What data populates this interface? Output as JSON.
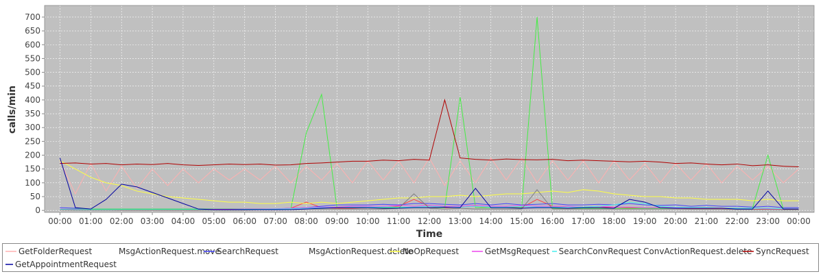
{
  "chart_data": {
    "type": "line",
    "xlabel": "Time",
    "ylabel": "calls/min",
    "grid": true,
    "legend": "bottom",
    "x": [
      0,
      0.5,
      1,
      1.5,
      2,
      2.5,
      3,
      3.5,
      4,
      4.5,
      5,
      5.5,
      6,
      6.5,
      7,
      7.5,
      8,
      8.5,
      9,
      9.5,
      10,
      10.5,
      11,
      11.5,
      12,
      12.5,
      13,
      13.5,
      14,
      14.5,
      15,
      15.5,
      16,
      16.5,
      17,
      17.5,
      18,
      18.5,
      19,
      19.5,
      20,
      20.5,
      21,
      21.5,
      22,
      22.5,
      23,
      23.5,
      24
    ],
    "xlim": [
      -0.5,
      24.5
    ],
    "xticks": [
      {
        "value": 0,
        "label": "00:00"
      },
      {
        "value": 1,
        "label": "01:00"
      },
      {
        "value": 2,
        "label": "02:00"
      },
      {
        "value": 3,
        "label": "03:00"
      },
      {
        "value": 4,
        "label": "04:00"
      },
      {
        "value": 5,
        "label": "05:00"
      },
      {
        "value": 6,
        "label": "06:00"
      },
      {
        "value": 7,
        "label": "07:00"
      },
      {
        "value": 8,
        "label": "08:00"
      },
      {
        "value": 9,
        "label": "09:00"
      },
      {
        "value": 10,
        "label": "10:00"
      },
      {
        "value": 11,
        "label": "11:00"
      },
      {
        "value": 12,
        "label": "12:00"
      },
      {
        "value": 13,
        "label": "13:00"
      },
      {
        "value": 14,
        "label": "14:00"
      },
      {
        "value": 15,
        "label": "15:00"
      },
      {
        "value": 16,
        "label": "16:00"
      },
      {
        "value": 17,
        "label": "17:00"
      },
      {
        "value": 18,
        "label": "18:00"
      },
      {
        "value": 19,
        "label": "19:00"
      },
      {
        "value": 20,
        "label": "20:00"
      },
      {
        "value": 21,
        "label": "21:00"
      },
      {
        "value": 22,
        "label": "22:00"
      },
      {
        "value": 23,
        "label": "23:00"
      },
      {
        "value": 24,
        "label": "00:00"
      }
    ],
    "ylim": [
      -7,
      742
    ],
    "yticks": [
      0,
      50,
      100,
      150,
      200,
      250,
      300,
      350,
      400,
      450,
      500,
      550,
      600,
      650,
      700
    ],
    "series": [
      {
        "name": "GetFolderRequest",
        "color": "#ffb0b0",
        "values": [
          180,
          60,
          170,
          70,
          160,
          80,
          150,
          90,
          150,
          100,
          150,
          110,
          150,
          110,
          160,
          100,
          160,
          110,
          170,
          100,
          180,
          110,
          180,
          100,
          190,
          90,
          180,
          100,
          190,
          110,
          190,
          100,
          180,
          110,
          180,
          100,
          180,
          110,
          170,
          100,
          170,
          110,
          170,
          100,
          160,
          110,
          160,
          100,
          150
        ]
      },
      {
        "name": "MsgActionRequest.move",
        "color": "#ff4444",
        "values": [
          3,
          2,
          2,
          2,
          1,
          1,
          1,
          1,
          1,
          1,
          2,
          2,
          3,
          3,
          5,
          8,
          30,
          10,
          8,
          8,
          10,
          10,
          15,
          40,
          15,
          10,
          12,
          15,
          10,
          12,
          10,
          40,
          15,
          12,
          10,
          10,
          12,
          10,
          8,
          8,
          8,
          6,
          6,
          5,
          5,
          4,
          4,
          3,
          3
        ]
      },
      {
        "name": "SearchRequest",
        "color": "#4444ff",
        "values": [
          10,
          8,
          5,
          5,
          5,
          5,
          5,
          5,
          5,
          5,
          5,
          5,
          5,
          5,
          5,
          8,
          10,
          15,
          20,
          20,
          20,
          22,
          20,
          25,
          25,
          22,
          20,
          25,
          20,
          25,
          20,
          22,
          25,
          20,
          20,
          22,
          20,
          25,
          20,
          18,
          20,
          15,
          18,
          15,
          15,
          12,
          15,
          10,
          10
        ]
      },
      {
        "name": "MsgActionRequest.delete",
        "color": "#44ee44",
        "values": [
          5,
          5,
          5,
          5,
          5,
          5,
          5,
          5,
          5,
          5,
          5,
          5,
          5,
          5,
          5,
          5,
          280,
          420,
          10,
          10,
          10,
          10,
          10,
          10,
          10,
          10,
          410,
          10,
          10,
          10,
          10,
          700,
          8,
          8,
          8,
          8,
          8,
          8,
          8,
          8,
          8,
          8,
          8,
          8,
          8,
          8,
          200,
          5,
          5
        ]
      },
      {
        "name": "NoOpRequest",
        "color": "#ffff44",
        "values": [
          180,
          150,
          120,
          100,
          90,
          70,
          60,
          50,
          45,
          40,
          35,
          30,
          30,
          25,
          25,
          30,
          25,
          30,
          25,
          30,
          35,
          40,
          45,
          45,
          50,
          50,
          55,
          50,
          55,
          60,
          60,
          65,
          70,
          65,
          75,
          70,
          60,
          55,
          50,
          50,
          45,
          45,
          40,
          40,
          40,
          35,
          40,
          35,
          35
        ]
      },
      {
        "name": "GetMsgRequest",
        "color": "#ee44ee",
        "values": [
          5,
          4,
          3,
          3,
          3,
          3,
          3,
          3,
          3,
          3,
          4,
          4,
          5,
          5,
          6,
          8,
          10,
          12,
          12,
          15,
          15,
          15,
          18,
          15,
          18,
          15,
          15,
          18,
          15,
          15,
          18,
          15,
          15,
          15,
          12,
          15,
          12,
          12,
          10,
          10,
          10,
          10,
          8,
          8,
          8,
          8,
          6,
          6,
          5
        ]
      },
      {
        "name": "SearchConvRequest",
        "color": "#44eeee",
        "values": [
          4,
          3,
          3,
          3,
          3,
          3,
          3,
          3,
          3,
          3,
          3,
          3,
          4,
          4,
          5,
          6,
          8,
          10,
          10,
          12,
          12,
          12,
          12,
          12,
          15,
          12,
          12,
          15,
          12,
          12,
          15,
          12,
          12,
          12,
          12,
          15,
          20,
          30,
          25,
          15,
          12,
          10,
          10,
          8,
          8,
          8,
          8,
          6,
          5
        ]
      },
      {
        "name": "ConvActionRequest.delete",
        "color": "#808080",
        "values": [
          2,
          1,
          1,
          1,
          1,
          1,
          1,
          1,
          1,
          1,
          1,
          1,
          1,
          2,
          2,
          3,
          5,
          5,
          5,
          5,
          5,
          5,
          8,
          60,
          8,
          5,
          8,
          5,
          5,
          5,
          5,
          75,
          5,
          5,
          5,
          5,
          5,
          5,
          5,
          5,
          5,
          4,
          4,
          4,
          3,
          3,
          3,
          2,
          2
        ]
      },
      {
        "name": "SyncRequest",
        "color": "#b00000",
        "values": [
          170,
          172,
          168,
          170,
          165,
          168,
          166,
          170,
          165,
          163,
          165,
          168,
          166,
          168,
          164,
          165,
          170,
          172,
          175,
          178,
          178,
          182,
          180,
          185,
          182,
          400,
          190,
          185,
          182,
          186,
          184,
          183,
          185,
          180,
          182,
          180,
          178,
          176,
          178,
          175,
          170,
          172,
          168,
          165,
          168,
          162,
          165,
          160,
          158
        ]
      },
      {
        "name": "GetAppointmentRequest",
        "color": "#0000a0",
        "values": [
          190,
          10,
          5,
          40,
          95,
          85,
          65,
          45,
          25,
          5,
          3,
          3,
          3,
          3,
          3,
          3,
          5,
          8,
          10,
          10,
          10,
          8,
          8,
          10,
          10,
          12,
          10,
          80,
          10,
          10,
          8,
          10,
          10,
          8,
          10,
          10,
          8,
          40,
          30,
          10,
          8,
          8,
          8,
          8,
          5,
          5,
          70,
          5,
          5
        ]
      }
    ]
  }
}
